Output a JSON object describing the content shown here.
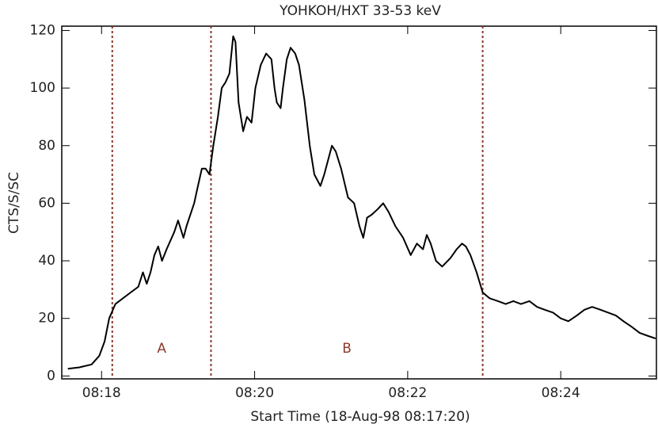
{
  "chart_data": {
    "type": "line",
    "title": "YOHKOH/HXT 33-53 keV",
    "x_label": "Start Time (18-Aug-98 08:17:20)",
    "y_label": "CTS/S/SC",
    "x": [
      17.56,
      17.71,
      17.87,
      17.97,
      18.04,
      18.1,
      18.18,
      18.28,
      18.38,
      18.48,
      18.54,
      18.59,
      18.64,
      18.69,
      18.74,
      18.79,
      18.85,
      18.95,
      19.0,
      19.07,
      19.11,
      19.21,
      19.26,
      19.31,
      19.36,
      19.41,
      19.46,
      19.52,
      19.57,
      19.62,
      19.67,
      19.72,
      19.75,
      19.79,
      19.85,
      19.9,
      19.96,
      20.01,
      20.08,
      20.15,
      20.22,
      20.26,
      20.29,
      20.34,
      20.37,
      20.42,
      20.47,
      20.53,
      20.58,
      20.65,
      20.72,
      20.78,
      20.86,
      20.91,
      21.01,
      21.06,
      21.13,
      21.22,
      21.3,
      21.37,
      21.42,
      21.47,
      21.53,
      21.61,
      21.68,
      21.75,
      21.84,
      21.94,
      22.04,
      22.12,
      22.2,
      22.25,
      22.3,
      22.37,
      22.45,
      22.56,
      22.64,
      22.71,
      22.76,
      22.82,
      22.9,
      22.98,
      23.07,
      23.18,
      23.28,
      23.38,
      23.48,
      23.59,
      23.69,
      23.79,
      23.9,
      24.0,
      24.1,
      24.21,
      24.31,
      24.41,
      24.52,
      24.62,
      24.72,
      24.82,
      24.93,
      25.03,
      25.13,
      25.24
    ],
    "series": [
      {
        "name": "HXT 33-53 keV",
        "color": "#000000",
        "values": [
          2.5,
          3,
          4,
          7,
          12,
          20,
          25,
          27,
          29,
          31,
          36,
          32,
          36,
          42,
          45,
          40,
          44,
          50,
          54,
          48,
          52,
          60,
          66,
          72,
          72,
          70,
          80,
          90,
          100,
          102,
          105,
          118,
          116,
          95,
          85,
          90,
          88,
          100,
          108,
          112,
          110,
          100,
          95,
          93,
          100,
          110,
          114,
          112,
          108,
          96,
          80,
          70,
          66,
          70,
          80,
          78,
          72,
          62,
          60,
          52,
          48,
          55,
          56,
          58,
          60,
          57,
          52,
          48,
          42,
          46,
          44,
          49,
          46,
          40,
          38,
          41,
          44,
          46,
          45,
          42,
          36,
          29,
          27,
          26,
          25,
          26,
          25,
          26,
          24,
          23,
          22,
          20,
          19,
          21,
          23,
          24,
          23,
          22,
          21,
          19,
          17,
          15,
          14,
          13
        ]
      }
    ],
    "xlim": [
      17.48,
      25.25
    ],
    "ylim": [
      -1,
      121.5
    ],
    "xticks": [
      {
        "value": 18,
        "label": "08:18"
      },
      {
        "value": 20,
        "label": "08:20"
      },
      {
        "value": 22,
        "label": "08:22"
      },
      {
        "value": 24,
        "label": "08:24"
      }
    ],
    "yticks": [
      0,
      20,
      40,
      60,
      80,
      100,
      120
    ],
    "vlines": [
      18.14,
      19.43,
      22.98
    ],
    "vline_color": "#8b3a2a",
    "annotations": [
      "A",
      "B"
    ]
  }
}
